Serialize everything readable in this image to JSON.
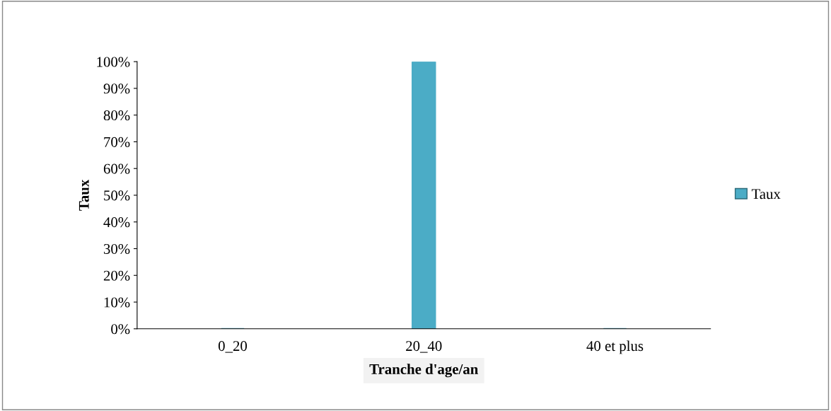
{
  "chart_data": {
    "type": "bar",
    "xlabel": "Tranche d'age/an",
    "ylabel": "Taux",
    "categories": [
      "0_20",
      "20_40",
      "40 et plus"
    ],
    "series": [
      {
        "name": "Taux",
        "color": "#4bacc6",
        "values": [
          0,
          100,
          0
        ]
      }
    ],
    "ylim": [
      0,
      100
    ],
    "yticks": [
      {
        "value": 0,
        "label": "0%"
      },
      {
        "value": 10,
        "label": "10%"
      },
      {
        "value": 20,
        "label": "20%"
      },
      {
        "value": 30,
        "label": "30%"
      },
      {
        "value": 40,
        "label": "40%"
      },
      {
        "value": 50,
        "label": "50%"
      },
      {
        "value": 60,
        "label": "60%"
      },
      {
        "value": 70,
        "label": "70%"
      },
      {
        "value": 80,
        "label": "80%"
      },
      {
        "value": 90,
        "label": "90%"
      },
      {
        "value": 100,
        "label": "100%"
      }
    ],
    "legend": "right",
    "grid": false
  }
}
